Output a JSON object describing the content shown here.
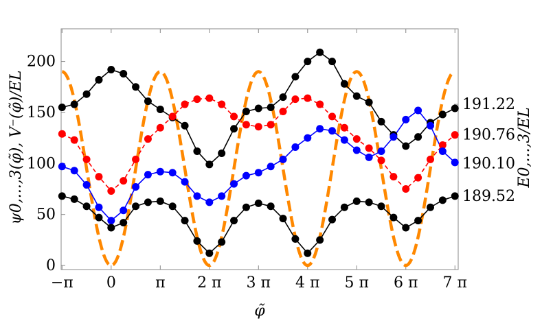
{
  "chart_data": {
    "type": "line",
    "title": "",
    "xlabel": "φ̃",
    "ylabel": "ψ0,...,3(φ̃), V⁻(φ̃)/EL",
    "right_axis_label": "E0,...,3/EL",
    "xlim": [
      -3.2,
      22.2
    ],
    "ylim": [
      -4,
      232
    ],
    "grid": false,
    "legend": "none",
    "x_ticks": [
      {
        "value": -3.1416,
        "label": "−π"
      },
      {
        "value": 0,
        "label": "0"
      },
      {
        "value": 3.1416,
        "label": "π"
      },
      {
        "value": 6.2832,
        "label": "2 π"
      },
      {
        "value": 9.4248,
        "label": "3 π"
      },
      {
        "value": 12.5664,
        "label": "4 π"
      },
      {
        "value": 15.708,
        "label": "5 π"
      },
      {
        "value": 18.8496,
        "label": "6 π"
      },
      {
        "value": 21.9911,
        "label": "7 π"
      }
    ],
    "y_ticks": [
      {
        "value": 0,
        "label": "0"
      },
      {
        "value": 50,
        "label": "50"
      },
      {
        "value": 100,
        "label": "100"
      },
      {
        "value": 150,
        "label": "150"
      },
      {
        "value": 200,
        "label": "200"
      }
    ],
    "energy_labels": [
      {
        "value": 158,
        "label": "191.22"
      },
      {
        "value": 128,
        "label": "190.76"
      },
      {
        "value": 100,
        "label": "190.10"
      },
      {
        "value": 68,
        "label": "189.52"
      }
    ],
    "x": [
      -3.1416,
      -2.3562,
      -1.5708,
      -0.7854,
      0,
      0.7854,
      1.5708,
      2.3562,
      3.1416,
      3.927,
      4.7124,
      5.4978,
      6.2832,
      7.0686,
      7.854,
      8.6394,
      9.4248,
      10.2102,
      10.9956,
      11.781,
      12.5664,
      13.3518,
      14.1372,
      14.9226,
      15.708,
      16.4934,
      17.2788,
      18.0642,
      18.8496,
      19.635,
      20.4204,
      21.2058,
      21.9911
    ],
    "series": [
      {
        "color": "#000000",
        "dashed": false,
        "values": [
          155,
          158,
          168,
          182,
          192,
          188,
          175,
          161,
          153,
          145,
          137,
          112,
          99,
          110,
          134,
          151,
          154,
          155,
          165,
          185,
          200,
          209,
          200,
          178,
          166,
          160,
          141,
          128,
          117,
          126,
          140,
          148,
          154
        ]
      },
      {
        "color": "#ff0000",
        "dashed": true,
        "values": [
          129,
          123,
          104,
          87,
          73,
          83,
          104,
          124,
          135,
          146,
          158,
          163,
          164,
          158,
          146,
          138,
          136,
          138,
          151,
          163,
          164,
          158,
          146,
          135,
          124,
          115,
          103,
          87,
          75,
          86,
          104,
          118,
          128
        ]
      },
      {
        "color": "#0000ff",
        "dashed": false,
        "values": [
          97,
          93,
          79,
          57,
          44,
          54,
          77,
          89,
          92,
          91,
          82,
          68,
          62,
          68,
          80,
          88,
          91,
          97,
          104,
          116,
          125,
          134,
          132,
          123,
          113,
          106,
          112,
          126,
          143,
          152,
          137,
          112,
          101
        ]
      },
      {
        "color": "#000000",
        "dashed": false,
        "values": [
          68,
          65,
          58,
          47,
          37,
          42,
          58,
          62,
          63,
          58,
          44,
          24,
          12,
          23,
          44,
          57,
          61,
          58,
          46,
          26,
          12,
          25,
          45,
          57,
          63,
          62,
          58,
          47,
          37,
          44,
          57,
          64,
          68
        ]
      },
      {
        "color": "#ff8800",
        "dashed": true,
        "markers": false,
        "potential_peak": 190
      }
    ]
  }
}
